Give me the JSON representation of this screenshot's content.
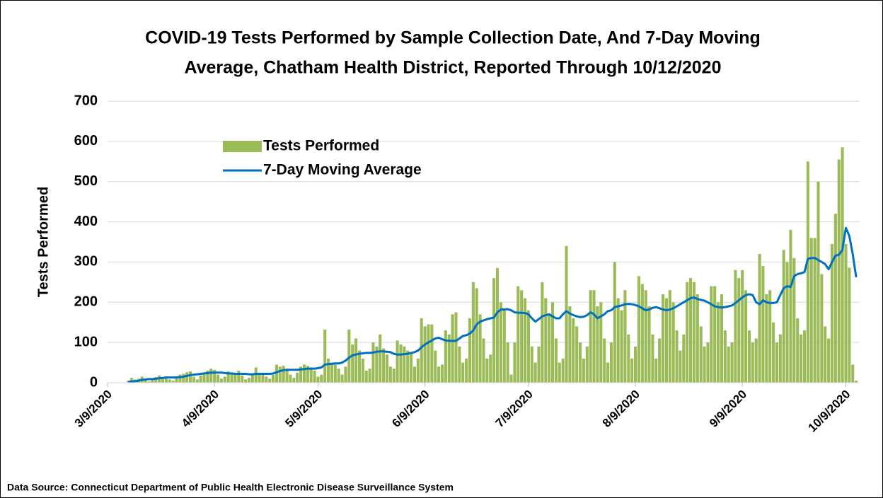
{
  "chart_data": {
    "type": "bar_line",
    "title": [
      "COVID-19 Tests Performed by Sample Collection Date, And 7-Day Moving",
      "Average, Chatham Health District, Reported Through 10/12/2020"
    ],
    "y_label": "Tests Performed",
    "source": "Data Source: Connecticut  Department of Public Health Electronic Disease Surveillance System",
    "legend": "upper left",
    "ylim": [
      0,
      700
    ],
    "yticks": [
      0,
      100,
      200,
      300,
      400,
      500,
      600,
      700
    ],
    "xlim": [
      "2020-03-09",
      "2020-10-13"
    ],
    "xticks": [
      {
        "value": "2020-03-09",
        "label": "3/9/2020"
      },
      {
        "value": "2020-04-09",
        "label": "4/9/2020"
      },
      {
        "value": "2020-05-09",
        "label": "5/9/2020"
      },
      {
        "value": "2020-06-09",
        "label": "6/9/2020"
      },
      {
        "value": "2020-07-09",
        "label": "7/9/2020"
      },
      {
        "value": "2020-08-09",
        "label": "8/9/2020"
      },
      {
        "value": "2020-09-09",
        "label": "9/9/2020"
      },
      {
        "value": "2020-10-09",
        "label": "10/9/2020"
      }
    ],
    "x": [
      "2020-03-15",
      "2020-03-16",
      "2020-03-17",
      "2020-03-18",
      "2020-03-19",
      "2020-03-20",
      "2020-03-21",
      "2020-03-22",
      "2020-03-23",
      "2020-03-24",
      "2020-03-25",
      "2020-03-26",
      "2020-03-27",
      "2020-03-28",
      "2020-03-29",
      "2020-03-30",
      "2020-03-31",
      "2020-04-01",
      "2020-04-02",
      "2020-04-03",
      "2020-04-04",
      "2020-04-05",
      "2020-04-06",
      "2020-04-07",
      "2020-04-08",
      "2020-04-09",
      "2020-04-10",
      "2020-04-11",
      "2020-04-12",
      "2020-04-13",
      "2020-04-14",
      "2020-04-15",
      "2020-04-16",
      "2020-04-17",
      "2020-04-18",
      "2020-04-19",
      "2020-04-20",
      "2020-04-21",
      "2020-04-22",
      "2020-04-23",
      "2020-04-24",
      "2020-04-25",
      "2020-04-26",
      "2020-04-27",
      "2020-04-28",
      "2020-04-29",
      "2020-04-30",
      "2020-05-01",
      "2020-05-02",
      "2020-05-03",
      "2020-05-04",
      "2020-05-05",
      "2020-05-06",
      "2020-05-07",
      "2020-05-08",
      "2020-05-09",
      "2020-05-10",
      "2020-05-11",
      "2020-05-12",
      "2020-05-13",
      "2020-05-14",
      "2020-05-15",
      "2020-05-16",
      "2020-05-17",
      "2020-05-18",
      "2020-05-19",
      "2020-05-20",
      "2020-05-21",
      "2020-05-22",
      "2020-05-23",
      "2020-05-24",
      "2020-05-25",
      "2020-05-26",
      "2020-05-27",
      "2020-05-28",
      "2020-05-29",
      "2020-05-30",
      "2020-05-31",
      "2020-06-01",
      "2020-06-02",
      "2020-06-03",
      "2020-06-04",
      "2020-06-05",
      "2020-06-06",
      "2020-06-07",
      "2020-06-08",
      "2020-06-09",
      "2020-06-10",
      "2020-06-11",
      "2020-06-12",
      "2020-06-13",
      "2020-06-14",
      "2020-06-15",
      "2020-06-16",
      "2020-06-17",
      "2020-06-18",
      "2020-06-19",
      "2020-06-20",
      "2020-06-21",
      "2020-06-22",
      "2020-06-23",
      "2020-06-24",
      "2020-06-25",
      "2020-06-26",
      "2020-06-27",
      "2020-06-28",
      "2020-06-29",
      "2020-06-30",
      "2020-07-01",
      "2020-07-02",
      "2020-07-03",
      "2020-07-04",
      "2020-07-05",
      "2020-07-06",
      "2020-07-07",
      "2020-07-08",
      "2020-07-09",
      "2020-07-10",
      "2020-07-11",
      "2020-07-12",
      "2020-07-13",
      "2020-07-14",
      "2020-07-15",
      "2020-07-16",
      "2020-07-17",
      "2020-07-18",
      "2020-07-19",
      "2020-07-20",
      "2020-07-21",
      "2020-07-22",
      "2020-07-23",
      "2020-07-24",
      "2020-07-25",
      "2020-07-26",
      "2020-07-27",
      "2020-07-28",
      "2020-07-29",
      "2020-07-30",
      "2020-07-31",
      "2020-08-01",
      "2020-08-02",
      "2020-08-03",
      "2020-08-04",
      "2020-08-05",
      "2020-08-06",
      "2020-08-07",
      "2020-08-08",
      "2020-08-09",
      "2020-08-10",
      "2020-08-11",
      "2020-08-12",
      "2020-08-13",
      "2020-08-14",
      "2020-08-15",
      "2020-08-16",
      "2020-08-17",
      "2020-08-18",
      "2020-08-19",
      "2020-08-20",
      "2020-08-21",
      "2020-08-22",
      "2020-08-23",
      "2020-08-24",
      "2020-08-25",
      "2020-08-26",
      "2020-08-27",
      "2020-08-28",
      "2020-08-29",
      "2020-08-30",
      "2020-08-31",
      "2020-09-01",
      "2020-09-02",
      "2020-09-03",
      "2020-09-04",
      "2020-09-05",
      "2020-09-06",
      "2020-09-07",
      "2020-09-08",
      "2020-09-09",
      "2020-09-10",
      "2020-09-11",
      "2020-09-12",
      "2020-09-13",
      "2020-09-14",
      "2020-09-15",
      "2020-09-16",
      "2020-09-17",
      "2020-09-18",
      "2020-09-19",
      "2020-09-20",
      "2020-09-21",
      "2020-09-22",
      "2020-09-23",
      "2020-09-24",
      "2020-09-25",
      "2020-09-26",
      "2020-09-27",
      "2020-09-28",
      "2020-09-29",
      "2020-09-30",
      "2020-10-01",
      "2020-10-02",
      "2020-10-03",
      "2020-10-04",
      "2020-10-05",
      "2020-10-06",
      "2020-10-07",
      "2020-10-08",
      "2020-10-09",
      "2020-10-10",
      "2020-10-11",
      "2020-10-12"
    ],
    "series": [
      {
        "name": "Tests Performed",
        "type": "bar",
        "color": "#9bbb59",
        "values": [
          5,
          12,
          8,
          10,
          15,
          6,
          3,
          10,
          14,
          18,
          12,
          16,
          8,
          5,
          12,
          20,
          22,
          26,
          28,
          15,
          8,
          18,
          25,
          30,
          35,
          32,
          20,
          10,
          15,
          28,
          25,
          22,
          30,
          18,
          8,
          12,
          20,
          38,
          22,
          25,
          15,
          10,
          20,
          45,
          40,
          42,
          35,
          20,
          12,
          25,
          40,
          45,
          42,
          38,
          30,
          15,
          20,
          132,
          60,
          50,
          45,
          35,
          20,
          40,
          132,
          95,
          110,
          80,
          60,
          30,
          35,
          100,
          90,
          120,
          85,
          70,
          40,
          35,
          105,
          95,
          90,
          80,
          75,
          40,
          60,
          160,
          140,
          145,
          145,
          80,
          40,
          45,
          130,
          120,
          170,
          175,
          90,
          50,
          60,
          160,
          250,
          235,
          170,
          110,
          60,
          70,
          260,
          285,
          200,
          180,
          100,
          20,
          100,
          240,
          230,
          210,
          180,
          90,
          50,
          90,
          250,
          210,
          170,
          200,
          110,
          50,
          60,
          340,
          190,
          160,
          140,
          100,
          60,
          90,
          230,
          230,
          190,
          200,
          110,
          50,
          100,
          300,
          210,
          180,
          230,
          120,
          60,
          90,
          265,
          245,
          230,
          190,
          120,
          60,
          110,
          220,
          210,
          230,
          200,
          130,
          80,
          120,
          250,
          260,
          250,
          220,
          140,
          90,
          100,
          240,
          240,
          200,
          220,
          130,
          90,
          100,
          280,
          260,
          280,
          230,
          130,
          100,
          110,
          320,
          290,
          220,
          230,
          150,
          100,
          120,
          330,
          300,
          380,
          310,
          160,
          120,
          130,
          550,
          360,
          360,
          500,
          270,
          140,
          110,
          345,
          420,
          555,
          585,
          345,
          286,
          45,
          5
        ]
      },
      {
        "name": "7-Day Moving Average",
        "type": "line",
        "color": "#0070c0",
        "values": [
          2,
          3,
          4,
          5,
          7,
          8,
          9,
          9,
          10,
          11,
          12,
          13,
          13,
          13,
          13,
          14,
          15,
          17,
          19,
          20,
          21,
          22,
          23,
          24,
          25,
          25,
          25,
          25,
          24,
          23,
          23,
          22,
          22,
          22,
          22,
          21,
          21,
          22,
          22,
          22,
          22,
          22,
          23,
          26,
          29,
          31,
          32,
          32,
          32,
          32,
          33,
          34,
          35,
          35,
          35,
          36,
          38,
          45,
          46,
          47,
          48,
          48,
          50,
          55,
          62,
          68,
          70,
          72,
          73,
          74,
          74,
          75,
          77,
          78,
          78,
          77,
          76,
          72,
          70,
          70,
          71,
          72,
          74,
          76,
          80,
          88,
          95,
          100,
          105,
          110,
          112,
          108,
          105,
          104,
          104,
          104,
          110,
          116,
          118,
          122,
          130,
          145,
          152,
          155,
          158,
          160,
          162,
          175,
          182,
          182,
          183,
          180,
          175,
          174,
          174,
          173,
          170,
          160,
          152,
          158,
          165,
          168,
          170,
          165,
          160,
          160,
          170,
          178,
          172,
          168,
          165,
          163,
          164,
          168,
          175,
          170,
          160,
          165,
          170,
          178,
          180,
          188,
          190,
          192,
          195,
          196,
          195,
          193,
          190,
          185,
          180,
          182,
          186,
          188,
          185,
          182,
          180,
          182,
          185,
          190,
          195,
          200,
          205,
          210,
          212,
          208,
          206,
          204,
          200,
          195,
          190,
          188,
          187,
          188,
          190,
          192,
          198,
          205,
          212,
          218,
          220,
          218,
          200,
          195,
          205,
          200,
          198,
          198,
          200,
          218,
          235,
          240,
          238,
          265,
          270,
          272,
          275,
          308,
          310,
          310,
          305,
          300,
          295,
          282,
          300,
          316,
          318,
          330,
          385,
          365,
          320,
          262
        ]
      }
    ]
  }
}
